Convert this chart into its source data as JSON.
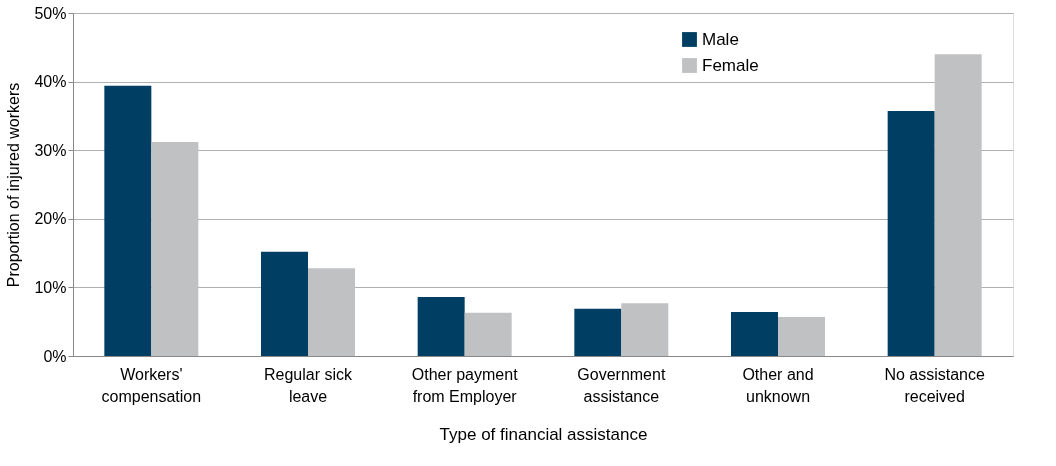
{
  "chart_data": {
    "type": "bar",
    "xlabel": "Type of financial assistance",
    "ylabel": "Proportion of injured workers",
    "categories": [
      "Workers'\ncompensation",
      "Regular sick\nleave",
      "Other payment\nfrom Employer",
      "Government\nassistance",
      "Other and\nunknown",
      "No assistance\nreceived"
    ],
    "series": [
      {
        "name": "Male",
        "color": "#003f63",
        "values": [
          39.4,
          15.2,
          8.6,
          6.9,
          6.4,
          35.7
        ]
      },
      {
        "name": "Female",
        "color": "#c0c1c3",
        "values": [
          31.2,
          12.8,
          6.3,
          7.7,
          5.7,
          44.0
        ]
      }
    ],
    "ylim": [
      0,
      50
    ],
    "yticks": [
      {
        "value": 0,
        "label": "0%"
      },
      {
        "value": 10,
        "label": "10%"
      },
      {
        "value": 20,
        "label": "20%"
      },
      {
        "value": 30,
        "label": "30%"
      },
      {
        "value": 40,
        "label": "40%"
      },
      {
        "value": 50,
        "label": "50%"
      }
    ],
    "grid": "y",
    "legend": "top right"
  }
}
